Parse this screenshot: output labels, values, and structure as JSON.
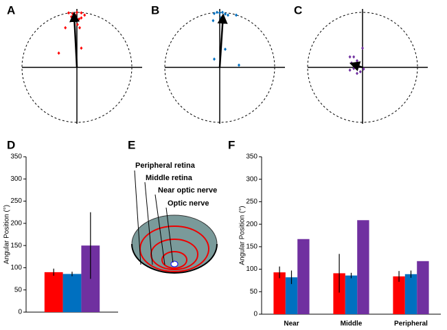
{
  "chart_data": [
    {
      "type": "scatter",
      "panel": "A",
      "color": "#ff0000",
      "xlim": [
        -1,
        1
      ],
      "ylim": [
        -1,
        1
      ],
      "x": [
        -0.15,
        -0.08,
        0,
        0.08,
        0.14,
        0.08,
        -0.03,
        0.04,
        -0.1,
        -0.05,
        0.01,
        -0.21,
        0.05,
        -0.33,
        0.08
      ],
      "y": [
        0.99,
        0.98,
        1.0,
        0.99,
        0.95,
        0.9,
        0.95,
        0.88,
        0.92,
        0.84,
        0.78,
        0.72,
        0.72,
        0.26,
        0.35
      ],
      "mean_vector": [
        -0.05,
        0.95
      ]
    },
    {
      "type": "scatter",
      "panel": "B",
      "color": "#0070c0",
      "xlim": [
        -1,
        1
      ],
      "ylim": [
        -1,
        1
      ],
      "x": [
        -0.1,
        -0.05,
        0,
        0.05,
        0.1,
        0.15,
        0.3,
        -0.12,
        0.07,
        0.02,
        0.1,
        -0.1,
        0.35
      ],
      "y": [
        0.98,
        1.0,
        0.99,
        1.0,
        0.97,
        0.95,
        0.95,
        0.85,
        0.88,
        0.9,
        0.33,
        0.15,
        0.04
      ],
      "mean_vector": [
        0.06,
        0.92
      ]
    },
    {
      "type": "scatter",
      "panel": "C",
      "color": "#7030a0",
      "xlim": [
        -1,
        1
      ],
      "ylim": [
        -1,
        1
      ],
      "x": [
        -0.23,
        -0.16,
        -0.2,
        -0.1,
        -0.08,
        -0.16,
        -0.23,
        -0.04,
        0.02,
        -0.1,
        0
      ],
      "y": [
        0.19,
        0.19,
        0.08,
        0.12,
        0.01,
        -0.02,
        -0.05,
        -0.08,
        -0.03,
        -0.11,
        0.35
      ],
      "mean_vector": [
        -0.18,
        0.06
      ]
    },
    {
      "type": "bar",
      "panel": "D",
      "y_label": "Angular Position (°)",
      "categories": [
        null
      ],
      "series": [
        {
          "color": "#ff0000",
          "values": [
            90
          ],
          "errors": [
            8
          ]
        },
        {
          "color": "#0070c0",
          "values": [
            86
          ],
          "errors": [
            5
          ]
        },
        {
          "color": "#7030a0",
          "values": [
            150
          ],
          "errors": [
            75
          ]
        }
      ],
      "ylim": [
        0,
        350
      ],
      "yticks": [
        0,
        50,
        100,
        150,
        200,
        250,
        300,
        350
      ]
    },
    {
      "type": "bar",
      "panel": "F",
      "y_label": "Angular Position (°)",
      "categories": [
        "Near",
        "Middle",
        "Peripheral"
      ],
      "series": [
        {
          "color": "#ff0000",
          "values": [
            93,
            91,
            84
          ],
          "errors": [
            13,
            43,
            12
          ]
        },
        {
          "color": "#0070c0",
          "values": [
            82,
            86,
            89
          ],
          "errors": [
            15,
            6,
            8
          ]
        },
        {
          "color": "#7030a0",
          "values": [
            167,
            209,
            118
          ]
        }
      ],
      "ylim": [
        0,
        350
      ],
      "yticks": [
        0,
        50,
        100,
        150,
        200,
        250,
        300,
        350
      ]
    }
  ],
  "diagram": {
    "panel": "E",
    "labels": [
      "Peripheral retina",
      "Middle retina",
      "Near optic nerve",
      "Optic nerve"
    ]
  }
}
